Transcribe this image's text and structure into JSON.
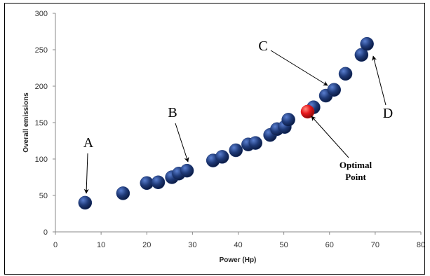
{
  "chart_data": {
    "type": "scatter",
    "title": "",
    "xlabel": "Power (Hp)",
    "ylabel": "Overall emissions",
    "xlim": [
      0,
      80
    ],
    "ylim": [
      0,
      300
    ],
    "xticks": [
      0,
      10,
      20,
      30,
      40,
      50,
      60,
      70,
      80
    ],
    "yticks": [
      0,
      50,
      100,
      150,
      200,
      250,
      300
    ],
    "grid": false,
    "legend": "none",
    "series": [
      {
        "color": "#1f3a78",
        "x": [
          6.5,
          14.8,
          20.0,
          22.5,
          25.5,
          27.0,
          28.8,
          34.5,
          36.5,
          39.5,
          42.2,
          43.8,
          47.0,
          48.5,
          50.2,
          51.0,
          56.5,
          59.2,
          61.0,
          63.5,
          67.0,
          68.2
        ],
        "y": [
          40,
          53,
          67,
          68,
          75,
          80,
          84,
          98,
          103,
          112,
          120,
          122,
          133,
          141,
          144,
          154,
          171,
          187,
          195,
          217,
          243,
          258
        ]
      },
      {
        "color": "#e8181c",
        "x": [
          55.2
        ],
        "y": [
          165
        ]
      }
    ],
    "annotations": [
      {
        "text": "A",
        "point": [
          6.5,
          40
        ]
      },
      {
        "text": "B",
        "point": [
          28.8,
          84
        ]
      },
      {
        "text": "C",
        "point": [
          59.2,
          187
        ]
      },
      {
        "text": "D",
        "point": [
          68.2,
          258
        ]
      },
      {
        "text": "Optimal",
        "text2": "Point",
        "point": [
          55.2,
          165
        ]
      }
    ]
  }
}
